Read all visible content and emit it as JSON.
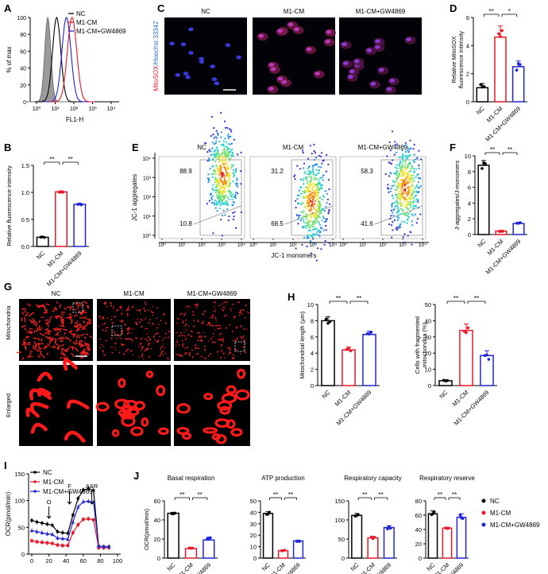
{
  "colors": {
    "NC": "#000000",
    "M1CM": "#e8182a",
    "GW": "#1f24d6",
    "red_text": "#e8182a",
    "blue_text": "#2a6fd6"
  },
  "groups": [
    "NC",
    "M1-CM",
    "M1-CM+GW4869"
  ],
  "panel_letters": [
    "A",
    "B",
    "C",
    "D",
    "E",
    "F",
    "G",
    "H",
    "I",
    "J"
  ],
  "chart_data": [
    {
      "id": "A",
      "type": "line",
      "xlabel": "FL1-H",
      "ylabel": "% of max",
      "x_ticks": [
        "10⁰",
        "10¹",
        "10²",
        "10³",
        "10⁴"
      ],
      "ylim": [
        0,
        100
      ],
      "y_ticks": [
        0,
        20,
        40,
        60,
        80,
        100
      ],
      "x_scale": "log",
      "series": [
        {
          "name": "NC",
          "peak_x": 12
        },
        {
          "name": "M1-CM",
          "peak_x": 80
        },
        {
          "name": "M1-CM+GW4869",
          "peak_x": 40
        }
      ],
      "unstained_peak_x": 4,
      "legend": [
        "NC",
        "M1-CM",
        "M1-CM+GW4869"
      ]
    },
    {
      "id": "B",
      "type": "bar",
      "ylabel": "Relative fluorescence intensity",
      "categories": [
        "NC",
        "M1-CM",
        "M1-CM+GW4869"
      ],
      "values": [
        0.17,
        1.01,
        0.78
      ],
      "errors": [
        0.01,
        0.02,
        0.02
      ],
      "ylim": [
        0,
        1.5
      ],
      "y_ticks": [
        "0.0",
        "0.5",
        "1.0",
        "1.5"
      ],
      "significance": [
        {
          "from": 0,
          "to": 1,
          "label": "**"
        },
        {
          "from": 1,
          "to": 2,
          "label": "**"
        }
      ]
    },
    {
      "id": "C",
      "type": "image",
      "columns": [
        "NC",
        "M1-CM",
        "M1-CM+GW4869"
      ],
      "ylabel_parts": [
        "MitoSOX",
        "/Hoechst 33342"
      ]
    },
    {
      "id": "D",
      "type": "bar",
      "ylabel_lines": [
        "Relative MitoSOX",
        "fluorescence intensity"
      ],
      "categories": [
        "NC",
        "M1-CM",
        "M1-CM+GW4869"
      ],
      "values": [
        1.0,
        4.6,
        2.5
      ],
      "errors": [
        0.3,
        0.8,
        0.4
      ],
      "ylim": [
        0,
        6
      ],
      "y_ticks": [
        "0",
        "2",
        "4",
        "6"
      ],
      "significance": [
        {
          "from": 0,
          "to": 1,
          "label": "**"
        },
        {
          "from": 1,
          "to": 2,
          "label": "*"
        }
      ]
    },
    {
      "id": "E",
      "type": "scatter",
      "xlabel": "JC-1 monomers",
      "ylabel": "JC-1 aggregates",
      "x_ticks": [
        "10⁰",
        "10¹",
        "10²",
        "10³",
        "10⁴"
      ],
      "y_ticks": [
        "10⁰",
        "10¹",
        "10²",
        "10³",
        "10⁴"
      ],
      "plots": [
        {
          "title": "NC",
          "upper": "88.9",
          "lower": "10.8"
        },
        {
          "title": "M1-CM",
          "upper": "31.2",
          "lower": "68.5"
        },
        {
          "title": "M1-CM+GW4869",
          "upper": "58.3",
          "lower": "41.6"
        }
      ]
    },
    {
      "id": "F",
      "type": "bar",
      "ylabel": "J-aggregates/J-monomers",
      "categories": [
        "NC",
        "M1-CM",
        "M1-CM+GW4869"
      ],
      "values": [
        8.8,
        0.45,
        1.4
      ],
      "errors": [
        0.6,
        0.1,
        0.15
      ],
      "ylim": [
        0,
        10
      ],
      "y_ticks": [
        "0",
        "2",
        "4",
        "6",
        "8",
        "10"
      ],
      "significance": [
        {
          "from": 0,
          "to": 1,
          "label": "**"
        },
        {
          "from": 1,
          "to": 2,
          "label": "**"
        }
      ]
    },
    {
      "id": "G",
      "type": "image",
      "columns": [
        "NC",
        "M1-CM",
        "M1-CM+GW4869"
      ],
      "rows": [
        "Mitochondria",
        "Enlarged"
      ]
    },
    {
      "id": "H1",
      "type": "bar",
      "ylabel": "Mitochondrial length (μm)",
      "categories": [
        "NC",
        "M1-CM",
        "M1-CM+GW4869"
      ],
      "values": [
        8.0,
        4.4,
        6.3
      ],
      "errors": [
        0.5,
        0.35,
        0.4
      ],
      "ylim": [
        0,
        10
      ],
      "y_ticks": [
        "0",
        "2",
        "4",
        "6",
        "8",
        "10"
      ],
      "significance": [
        {
          "from": 0,
          "to": 1,
          "label": "**"
        },
        {
          "from": 1,
          "to": 2,
          "label": "**"
        }
      ]
    },
    {
      "id": "H2",
      "type": "bar",
      "ylabel_lines": [
        "Cells with fragmented",
        "mitochondria (%)"
      ],
      "categories": [
        "NC",
        "M1-CM",
        "M1-CM+GW4869"
      ],
      "values": [
        3.0,
        34.0,
        18.5
      ],
      "errors": [
        0.6,
        4.0,
        3.0
      ],
      "ylim": [
        0,
        50
      ],
      "y_ticks": [
        "0",
        "10",
        "20",
        "30",
        "40",
        "50"
      ],
      "significance": [
        {
          "from": 0,
          "to": 1,
          "label": "**"
        },
        {
          "from": 1,
          "to": 2,
          "label": "**"
        }
      ]
    },
    {
      "id": "I",
      "type": "line",
      "ylabel": "OCR(pmol/min)",
      "x": [
        0,
        6,
        12,
        18,
        24,
        30,
        36,
        42,
        48,
        54,
        60,
        66,
        72,
        78,
        84,
        90
      ],
      "xlim": [
        0,
        100
      ],
      "x_ticks": [
        "0",
        "20",
        "40",
        "60",
        "80",
        "100"
      ],
      "ylim": [
        0,
        150
      ],
      "y_ticks": [
        "0",
        "50",
        "100",
        "150"
      ],
      "series": [
        {
          "name": "NC",
          "values": [
            63,
            60,
            58,
            56,
            54,
            42,
            40,
            39,
            73,
            104,
            120,
            122,
            119,
            15,
            14,
            14
          ]
        },
        {
          "name": "M1-CM",
          "values": [
            25,
            23,
            22,
            21,
            20,
            17,
            16,
            16,
            40,
            55,
            65,
            66,
            64,
            12,
            12,
            12
          ]
        },
        {
          "name": "M1-CM+GW4869",
          "values": [
            44,
            42,
            40,
            38,
            37,
            30,
            29,
            28,
            60,
            88,
            98,
            99,
            97,
            15,
            14,
            14
          ]
        }
      ],
      "injections": [
        {
          "label": "O",
          "x": 20
        },
        {
          "label": "F",
          "x": 44
        },
        {
          "label": "A&R",
          "x": 70
        }
      ],
      "legend": [
        "NC",
        "M1-CM",
        "M1-CM+GW4869"
      ]
    },
    {
      "id": "J1",
      "type": "bar",
      "title": "Basal respiration",
      "ylabel": "OCR(pmol/min)",
      "categories": [
        "NC",
        "M1-CM",
        "M1-CM+GW4869"
      ],
      "values": [
        47,
        10,
        19
      ],
      "errors": [
        1,
        1,
        3
      ],
      "ylim": [
        0,
        60
      ],
      "y_ticks": [
        "0",
        "20",
        "40",
        "60"
      ],
      "significance": [
        {
          "from": 0,
          "to": 1,
          "label": "**"
        },
        {
          "from": 1,
          "to": 2,
          "label": "**"
        }
      ]
    },
    {
      "id": "J2",
      "type": "bar",
      "title": "ATP production",
      "categories": [
        "NC",
        "M1-CM",
        "M1-CM+GW4869"
      ],
      "values": [
        39,
        6.5,
        15
      ],
      "errors": [
        1.5,
        0.5,
        0.7
      ],
      "ylim": [
        0,
        50
      ],
      "y_ticks": [
        "0",
        "10",
        "20",
        "30",
        "40",
        "50"
      ],
      "significance": [
        {
          "from": 0,
          "to": 1,
          "label": "**"
        },
        {
          "from": 1,
          "to": 2,
          "label": "**"
        }
      ]
    },
    {
      "id": "J3",
      "type": "bar",
      "title": "Respiratory capacity",
      "categories": [
        "NC",
        "M1-CM",
        "M1-CM+GW4869"
      ],
      "values": [
        112,
        53,
        80
      ],
      "errors": [
        5,
        3,
        5
      ],
      "ylim": [
        0,
        150
      ],
      "y_ticks": [
        "0",
        "50",
        "100",
        "150"
      ],
      "significance": [
        {
          "from": 0,
          "to": 1,
          "label": "**"
        },
        {
          "from": 1,
          "to": 2,
          "label": "**"
        }
      ]
    },
    {
      "id": "J4",
      "type": "bar",
      "title": "Respiratory reserve",
      "categories": [
        "NC",
        "M1-CM",
        "M1-CM+GW4869"
      ],
      "values": [
        62,
        42,
        57
      ],
      "errors": [
        4,
        1,
        5
      ],
      "ylim": [
        0,
        80
      ],
      "y_ticks": [
        "0",
        "20",
        "40",
        "60",
        "80"
      ],
      "significance": [
        {
          "from": 0,
          "to": 1,
          "label": "**"
        },
        {
          "from": 1,
          "to": 2,
          "label": "**"
        }
      ],
      "legend": [
        "NC",
        "M1-CM",
        "M1-CM+GW4869"
      ]
    }
  ]
}
